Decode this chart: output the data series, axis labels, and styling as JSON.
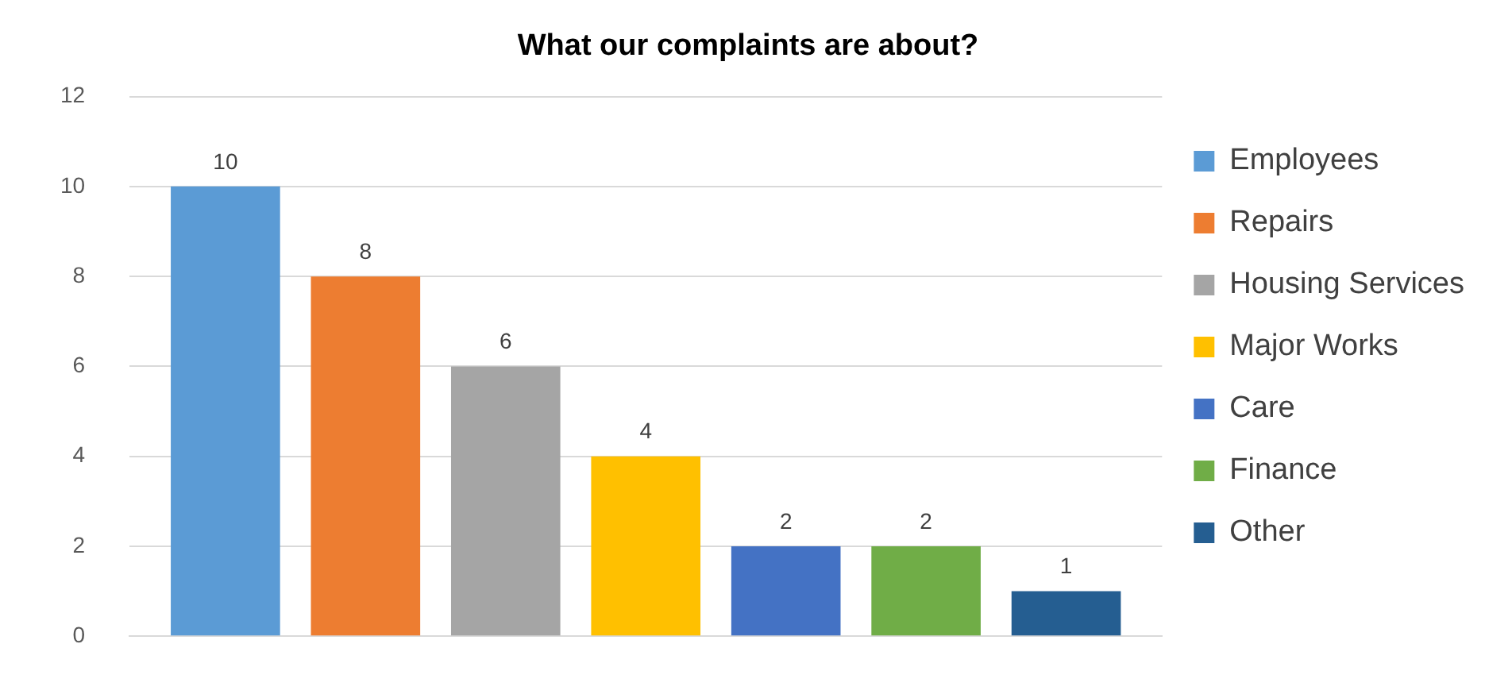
{
  "chart_data": {
    "type": "bar",
    "title": "What our complaints are about?",
    "categories": [
      null
    ],
    "series": [
      {
        "name": "Employees",
        "color": "#5b9bd5",
        "values": [
          10
        ]
      },
      {
        "name": "Repairs",
        "color": "#ed7d31",
        "values": [
          8
        ]
      },
      {
        "name": "Housing Services",
        "color": "#a5a5a5",
        "values": [
          6
        ]
      },
      {
        "name": "Major Works",
        "color": "#ffc000",
        "values": [
          4
        ]
      },
      {
        "name": "Care",
        "color": "#4472c4",
        "values": [
          2
        ]
      },
      {
        "name": "Finance",
        "color": "#70ad47",
        "values": [
          2
        ]
      },
      {
        "name": "Other",
        "color": "#255e91",
        "values": [
          1
        ]
      }
    ],
    "ylim": [
      0,
      12
    ],
    "yticks": [
      0,
      2,
      4,
      6,
      8,
      10,
      12
    ],
    "grid": "y",
    "legend": "right",
    "data_labels": true
  }
}
